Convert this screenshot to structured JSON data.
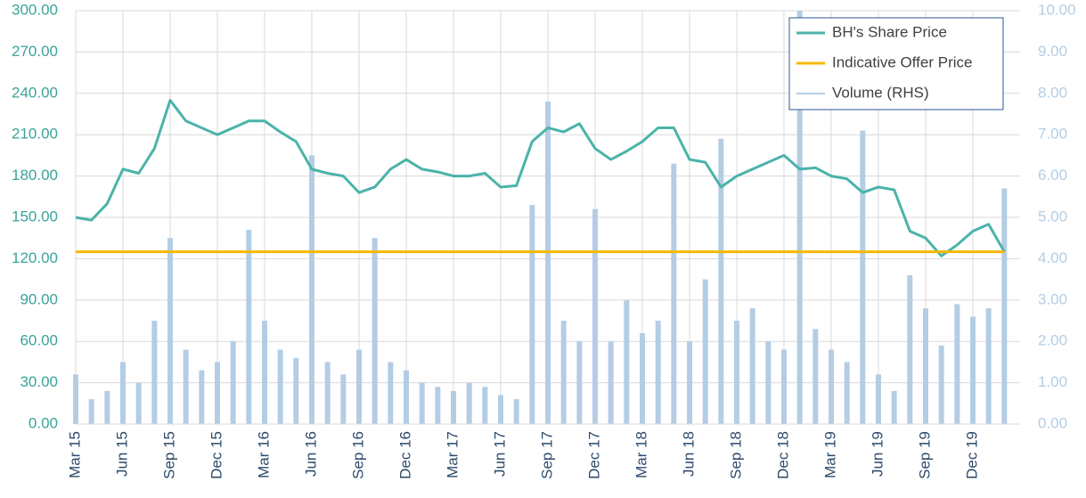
{
  "chart_data": {
    "type": "line",
    "categories": [
      "Mar 15",
      null,
      null,
      "Jun 15",
      null,
      null,
      "Sep 15",
      null,
      null,
      "Dec 15",
      null,
      null,
      "Mar 16",
      null,
      null,
      "Jun 16",
      null,
      null,
      "Sep 16",
      null,
      null,
      "Dec 16",
      null,
      null,
      "Mar 17",
      null,
      null,
      "Jun 17",
      null,
      null,
      "Sep 17",
      null,
      null,
      "Dec 17",
      null,
      null,
      "Mar 18",
      null,
      null,
      "Jun 18",
      null,
      null,
      "Sep 18",
      null,
      null,
      "Dec 18",
      null,
      null,
      "Mar 19",
      null,
      null,
      "Jun 19",
      null,
      null,
      "Sep 19",
      null,
      null,
      "Dec 19",
      null,
      null
    ],
    "series": [
      {
        "name": "BH's Share Price",
        "color": "#4bb3aa",
        "type": "line",
        "values": [
          150,
          148,
          160,
          185,
          182,
          200,
          235,
          220,
          215,
          210,
          215,
          220,
          220,
          212,
          205,
          185,
          182,
          180,
          168,
          172,
          185,
          192,
          185,
          183,
          180,
          180,
          182,
          172,
          173,
          205,
          215,
          212,
          218,
          200,
          192,
          198,
          205,
          215,
          215,
          192,
          190,
          172,
          180,
          185,
          190,
          195,
          185,
          186,
          180,
          178,
          168,
          172,
          170,
          140,
          135,
          122,
          130,
          140,
          145,
          125
        ]
      },
      {
        "name": "Indicative Offer Price",
        "color": "#f5b800",
        "type": "line",
        "values": [
          125,
          125,
          125,
          125,
          125,
          125,
          125,
          125,
          125,
          125,
          125,
          125,
          125,
          125,
          125,
          125,
          125,
          125,
          125,
          125,
          125,
          125,
          125,
          125,
          125,
          125,
          125,
          125,
          125,
          125,
          125,
          125,
          125,
          125,
          125,
          125,
          125,
          125,
          125,
          125,
          125,
          125,
          125,
          125,
          125,
          125,
          125,
          125,
          125,
          125,
          125,
          125,
          125,
          125,
          125,
          125,
          125,
          125,
          125,
          125
        ]
      },
      {
        "name": "Volume (RHS)",
        "color": "#b4cde4",
        "type": "bar",
        "axis": "y2",
        "values": [
          1.2,
          0.6,
          0.8,
          1.5,
          1.0,
          2.5,
          4.5,
          1.8,
          1.3,
          1.5,
          2.0,
          4.7,
          2.5,
          1.8,
          1.6,
          6.5,
          1.5,
          1.2,
          1.8,
          4.5,
          1.5,
          1.3,
          1.0,
          0.9,
          0.8,
          1.0,
          0.9,
          0.7,
          0.6,
          5.3,
          7.8,
          2.5,
          2.0,
          5.2,
          2.0,
          3.0,
          2.2,
          2.5,
          6.3,
          2.0,
          3.5,
          6.9,
          2.5,
          2.8,
          2.0,
          1.8,
          10.0,
          2.3,
          1.8,
          1.5,
          7.1,
          1.2,
          0.8,
          3.6,
          2.8,
          1.9,
          2.9,
          2.6,
          2.8,
          5.7
        ]
      }
    ],
    "ylim": [
      0,
      300
    ],
    "yticks": [
      {
        "value": 0,
        "label": "0.00"
      },
      {
        "value": 30,
        "label": "30.00"
      },
      {
        "value": 60,
        "label": "60.00"
      },
      {
        "value": 90,
        "label": "90.00"
      },
      {
        "value": 120,
        "label": "120.00"
      },
      {
        "value": 150,
        "label": "150.00"
      },
      {
        "value": 180,
        "label": "180.00"
      },
      {
        "value": 210,
        "label": "210.00"
      },
      {
        "value": 240,
        "label": "240.00"
      },
      {
        "value": 270,
        "label": "270.00"
      },
      {
        "value": 300,
        "label": "300.00"
      }
    ],
    "y2lim": [
      0,
      10
    ],
    "y2ticks": [
      {
        "value": 0,
        "label": "0.00"
      },
      {
        "value": 1,
        "label": "1.00"
      },
      {
        "value": 2,
        "label": "2.00"
      },
      {
        "value": 3,
        "label": "3.00"
      },
      {
        "value": 4,
        "label": "4.00"
      },
      {
        "value": 5,
        "label": "5.00"
      },
      {
        "value": 6,
        "label": "6.00"
      },
      {
        "value": 7,
        "label": "7.00"
      },
      {
        "value": 8,
        "label": "8.00"
      },
      {
        "value": 9,
        "label": "9.00"
      },
      {
        "value": 10,
        "label": "10.00"
      }
    ],
    "grid": true,
    "legend": "top-right"
  }
}
